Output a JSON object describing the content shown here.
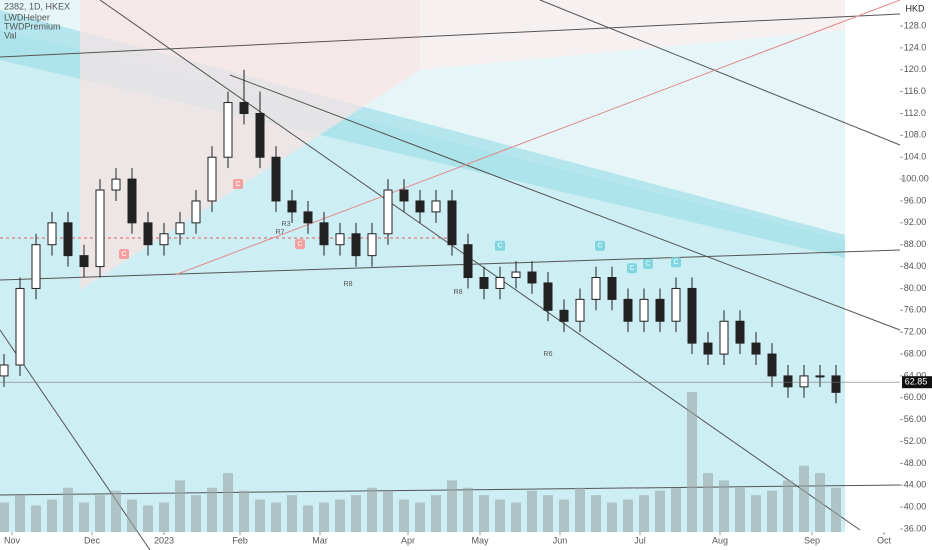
{
  "chart_data": {
    "type": "candlestick",
    "title": "2382, 1D, HKEX",
    "indicators": [
      "LWDHelper",
      "TWDPremium",
      "Val"
    ],
    "currency": "HKD",
    "last_price": 62.85,
    "x": [
      1,
      5,
      9,
      13,
      17,
      21,
      25,
      29,
      33,
      37,
      41,
      45,
      49,
      53,
      57,
      61,
      65,
      69,
      73,
      77,
      81,
      85,
      89,
      93,
      97,
      101,
      105,
      109,
      113,
      117,
      121,
      125,
      129,
      133,
      137,
      141,
      145,
      149,
      153,
      157,
      161,
      165,
      169,
      173,
      177,
      181,
      185,
      189,
      193,
      197,
      201,
      205,
      209
    ],
    "open": [
      64,
      66,
      80,
      88,
      92,
      86,
      84,
      98,
      100,
      92,
      88,
      90,
      92,
      96,
      104,
      114,
      112,
      104,
      96,
      94,
      92,
      88,
      90,
      86,
      90,
      98,
      96,
      94,
      96,
      88,
      82,
      80,
      82,
      83,
      81,
      76,
      74,
      78,
      82,
      78,
      74,
      78,
      74,
      80,
      70,
      68,
      74,
      70,
      68,
      64,
      62,
      64,
      64
    ],
    "high": [
      68,
      82,
      90,
      94,
      94,
      88,
      100,
      102,
      102,
      94,
      92,
      94,
      98,
      106,
      116,
      120,
      116,
      106,
      98,
      96,
      94,
      92,
      92,
      92,
      100,
      100,
      98,
      98,
      98,
      90,
      84,
      84,
      85,
      85,
      83,
      78,
      80,
      84,
      84,
      80,
      80,
      80,
      82,
      82,
      72,
      76,
      76,
      72,
      70,
      66,
      66,
      66,
      66
    ],
    "low": [
      62,
      64,
      78,
      86,
      84,
      82,
      82,
      96,
      90,
      86,
      86,
      88,
      90,
      94,
      102,
      110,
      102,
      94,
      92,
      90,
      86,
      86,
      84,
      84,
      88,
      94,
      92,
      92,
      86,
      80,
      78,
      78,
      80,
      79,
      74,
      72,
      72,
      76,
      76,
      72,
      72,
      72,
      72,
      68,
      66,
      66,
      68,
      66,
      62,
      60,
      60,
      62,
      59
    ],
    "close": [
      66,
      80,
      88,
      92,
      86,
      84,
      98,
      100,
      92,
      88,
      90,
      92,
      96,
      104,
      114,
      112,
      104,
      96,
      94,
      92,
      88,
      90,
      86,
      90,
      98,
      96,
      94,
      96,
      88,
      82,
      80,
      82,
      83,
      81,
      76,
      74,
      78,
      82,
      78,
      74,
      78,
      74,
      80,
      70,
      68,
      74,
      70,
      68,
      64,
      62,
      64,
      64,
      61
    ],
    "volume": [
      20,
      25,
      18,
      22,
      30,
      20,
      25,
      28,
      22,
      18,
      20,
      35,
      25,
      30,
      40,
      28,
      22,
      20,
      25,
      18,
      20,
      22,
      25,
      30,
      28,
      22,
      20,
      25,
      35,
      30,
      25,
      22,
      20,
      28,
      25,
      22,
      30,
      25,
      20,
      22,
      25,
      28,
      30,
      95,
      40,
      35,
      30,
      25,
      28,
      35,
      45,
      40,
      30
    ],
    "xlim": [
      0,
      225
    ],
    "xticks": [
      {
        "value": 3,
        "label": "Nov"
      },
      {
        "value": 23,
        "label": "Dec"
      },
      {
        "value": 41,
        "label": "2023"
      },
      {
        "value": 60,
        "label": "Feb"
      },
      {
        "value": 80,
        "label": "Mar"
      },
      {
        "value": 102,
        "label": "Apr"
      },
      {
        "value": 120,
        "label": "May"
      },
      {
        "value": 140,
        "label": "Jun"
      },
      {
        "value": 160,
        "label": "Jul"
      },
      {
        "value": 180,
        "label": "Aug"
      },
      {
        "value": 203,
        "label": "Sep"
      },
      {
        "value": 221,
        "label": "Oct"
      }
    ],
    "ylim": [
      35.45,
      132.76
    ],
    "yticks": [
      {
        "value": 36,
        "label": "36.00"
      },
      {
        "value": 40,
        "label": "40.00"
      },
      {
        "value": 44,
        "label": "44.00"
      },
      {
        "value": 48,
        "label": "48.00"
      },
      {
        "value": 52,
        "label": "52.00"
      },
      {
        "value": 56,
        "label": "56.00"
      },
      {
        "value": 60,
        "label": "60.00"
      },
      {
        "value": 64,
        "label": "64.00"
      },
      {
        "value": 68,
        "label": "68.00"
      },
      {
        "value": 72,
        "label": "72.00"
      },
      {
        "value": 76,
        "label": "76.00"
      },
      {
        "value": 80,
        "label": "80.00"
      },
      {
        "value": 84,
        "label": "84.00"
      },
      {
        "value": 88,
        "label": "88.00"
      },
      {
        "value": 92,
        "label": "92.00"
      },
      {
        "value": 96,
        "label": "96.00"
      },
      {
        "value": 100,
        "label": "100.00"
      },
      {
        "value": 104,
        "label": "104.0"
      },
      {
        "value": 108,
        "label": "108.0"
      },
      {
        "value": 112,
        "label": "112.0"
      },
      {
        "value": 116,
        "label": "116.0"
      },
      {
        "value": 120,
        "label": "120.0"
      },
      {
        "value": 124,
        "label": "124.0"
      },
      {
        "value": 128,
        "label": "128.0"
      }
    ],
    "annotations": [
      {
        "text": "C",
        "x": 31,
        "y": 86.3
      },
      {
        "text": "C",
        "x": 59.5,
        "y": 99.1
      },
      {
        "text": "C",
        "x": 75,
        "y": 88.1
      },
      {
        "text": "C",
        "x": 125,
        "y": 87.8
      },
      {
        "text": "C",
        "x": 150,
        "y": 87.8
      },
      {
        "text": "C",
        "x": 158,
        "y": 83.7
      },
      {
        "text": "C",
        "x": 162,
        "y": 84.5
      },
      {
        "text": "C",
        "x": 169,
        "y": 84.8
      },
      {
        "text": "R7",
        "x": 70,
        "y": 90.3
      },
      {
        "text": "R3",
        "x": 71.5,
        "y": 91.8
      },
      {
        "text": "R8",
        "x": 87,
        "y": 80.8
      },
      {
        "text": "R8",
        "x": 114.5,
        "y": 79.3
      },
      {
        "text": "R6",
        "x": 137,
        "y": 68
      }
    ]
  }
}
